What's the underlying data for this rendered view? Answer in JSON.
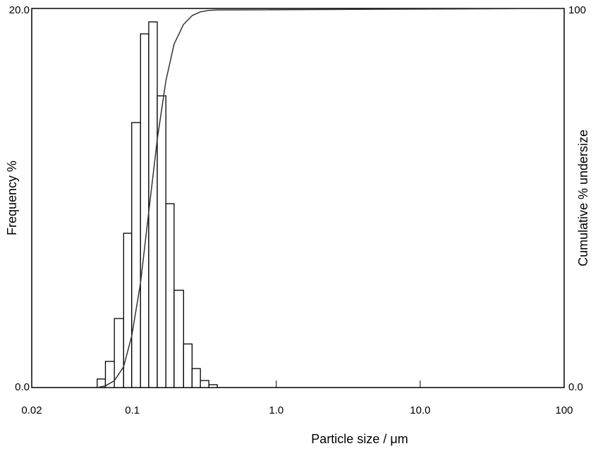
{
  "chart_data": {
    "type": "histogram",
    "xscale": "log",
    "xlabel": "Particle size / μm",
    "ylabel": "Frequency %",
    "y2label": "Cumulative % undersize",
    "bins": [
      0.057,
      0.065,
      0.075,
      0.087,
      0.099,
      0.114,
      0.13,
      0.149,
      0.171,
      0.195,
      0.227,
      0.26,
      0.297,
      0.34,
      0.389
    ],
    "values": [
      0.45,
      1.38,
      3.64,
      8.14,
      13.98,
      18.66,
      19.29,
      15.39,
      9.7,
      5.13,
      2.3,
      1.0,
      0.37,
      0.15
    ],
    "color": "#ffffff",
    "edgecolor": "#000000",
    "cumulative": {
      "type": "line",
      "axis": "y2",
      "color": "#333333",
      "x": [
        0.057,
        0.065,
        0.075,
        0.087,
        0.099,
        0.114,
        0.13,
        0.149,
        0.171,
        0.195,
        0.227,
        0.26,
        0.297,
        0.34,
        0.389,
        100
      ],
      "values": [
        0,
        0.45,
        1.8,
        5.5,
        13.6,
        27.6,
        46.3,
        65.5,
        80.9,
        90.6,
        95.8,
        98.1,
        99.1,
        99.5,
        99.6,
        100
      ]
    },
    "xlim": [
      0.02,
      100
    ],
    "xticks": [
      0.02,
      0.1,
      {
        "value": 1,
        "label": "1.0"
      },
      {
        "value": 10,
        "label": "10.0"
      },
      100
    ],
    "ylim": [
      0,
      20
    ],
    "yticks": [
      {
        "value": 0,
        "label": "0.0"
      },
      {
        "value": 20,
        "label": "20.0"
      }
    ],
    "y2lim": [
      0,
      100
    ],
    "y2ticks": [
      {
        "value": 0,
        "label": "0.0"
      },
      100
    ]
  }
}
